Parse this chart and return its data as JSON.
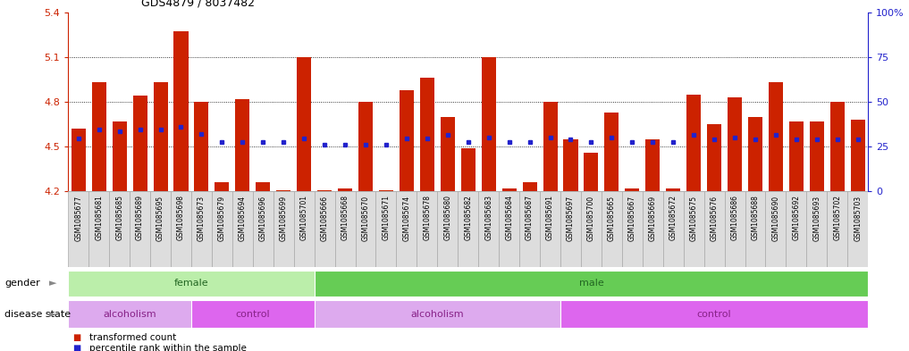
{
  "title": "GDS4879 / 8037482",
  "samples": [
    "GSM1085677",
    "GSM1085681",
    "GSM1085685",
    "GSM1085689",
    "GSM1085695",
    "GSM1085698",
    "GSM1085673",
    "GSM1085679",
    "GSM1085694",
    "GSM1085696",
    "GSM1085699",
    "GSM1085701",
    "GSM1085666",
    "GSM1085668",
    "GSM1085670",
    "GSM1085671",
    "GSM1085674",
    "GSM1085678",
    "GSM1085680",
    "GSM1085682",
    "GSM1085683",
    "GSM1085684",
    "GSM1085687",
    "GSM1085691",
    "GSM1085697",
    "GSM1085700",
    "GSM1085665",
    "GSM1085667",
    "GSM1085669",
    "GSM1085672",
    "GSM1085675",
    "GSM1085676",
    "GSM1085686",
    "GSM1085688",
    "GSM1085690",
    "GSM1085692",
    "GSM1085693",
    "GSM1085702",
    "GSM1085703"
  ],
  "bar_values": [
    4.62,
    4.93,
    4.67,
    4.84,
    4.93,
    5.27,
    4.8,
    4.26,
    4.82,
    4.26,
    4.21,
    5.1,
    4.21,
    4.22,
    4.8,
    4.21,
    4.88,
    4.96,
    4.7,
    4.49,
    5.1,
    4.22,
    4.26,
    4.8,
    4.55,
    4.46,
    4.73,
    4.22,
    4.55,
    4.22,
    4.85,
    4.65,
    4.83,
    4.7,
    4.93,
    4.67,
    4.67,
    4.8,
    4.68
  ],
  "percentile_values": [
    4.555,
    4.615,
    4.6,
    4.615,
    4.615,
    4.63,
    4.585,
    4.53,
    4.53,
    4.53,
    4.53,
    4.555,
    4.51,
    4.51,
    4.51,
    4.51,
    4.555,
    4.555,
    4.58,
    4.53,
    4.56,
    4.53,
    4.53,
    4.56,
    4.55,
    4.53,
    4.56,
    4.53,
    4.53,
    4.53,
    4.58,
    4.55,
    4.56,
    4.55,
    4.58,
    4.55,
    4.55,
    4.55,
    4.55
  ],
  "y_min": 4.2,
  "y_max": 5.4,
  "y_ticks": [
    4.2,
    4.5,
    4.8,
    5.1,
    5.4
  ],
  "y_right_ticks_pct": [
    0,
    25,
    50,
    75,
    100
  ],
  "y_right_tick_labels": [
    "0",
    "25",
    "50",
    "75",
    "100%"
  ],
  "bar_color": "#cc2200",
  "percentile_color": "#2222cc",
  "tick_color_left": "#cc2200",
  "tick_color_right": "#2222cc",
  "bar_bottom": 4.2,
  "gender_groups": [
    {
      "label": "female",
      "start": 0,
      "end": 11,
      "color": "#bbeeaa"
    },
    {
      "label": "male",
      "start": 12,
      "end": 38,
      "color": "#66cc55"
    }
  ],
  "disease_groups": [
    {
      "label": "alcoholism",
      "start": 0,
      "end": 5,
      "color": "#ddaaee"
    },
    {
      "label": "control",
      "start": 6,
      "end": 11,
      "color": "#dd66ee"
    },
    {
      "label": "alcoholism",
      "start": 12,
      "end": 23,
      "color": "#ddaaee"
    },
    {
      "label": "control",
      "start": 24,
      "end": 38,
      "color": "#dd66ee"
    }
  ],
  "label_bg_color": "#dddddd",
  "label_border_color": "#aaaaaa"
}
